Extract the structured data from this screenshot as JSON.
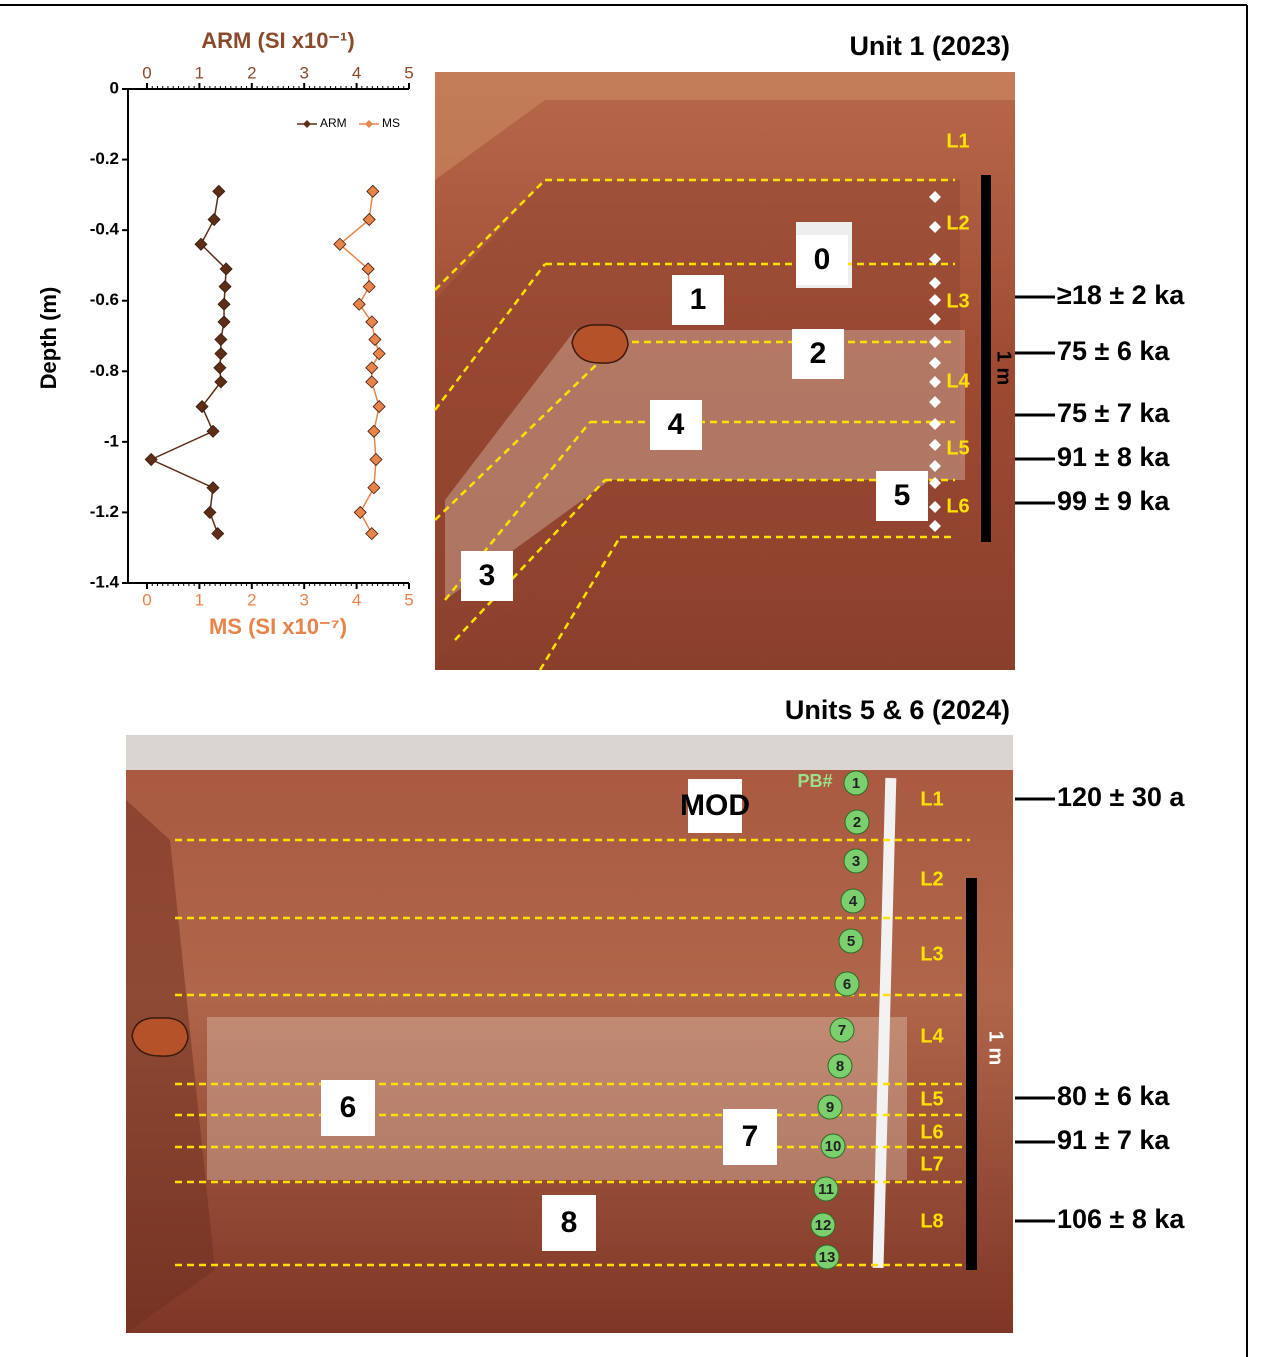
{
  "chart_data": {
    "type": "line",
    "x_label": "ARM (SI x10⁻¹)",
    "x2_label": "MS (SI x10⁻⁷)",
    "y_label": "Depth (m)",
    "xlim": [
      0,
      5
    ],
    "xticks": [
      0,
      1,
      2,
      3,
      4,
      5
    ],
    "x2lim": [
      0,
      5
    ],
    "x2ticks": [
      0,
      1,
      2,
      3,
      4,
      5
    ],
    "ylim": [
      -1.4,
      0
    ],
    "yticks": [
      0,
      -0.2,
      -0.4,
      -0.6,
      -0.8,
      -1,
      -1.2,
      -1.4
    ],
    "series": [
      {
        "name": "ARM",
        "color": "#5c2e18",
        "axis": "x",
        "x": [
          1.37,
          1.28,
          1.03,
          1.51,
          1.49,
          1.47,
          1.47,
          1.41,
          1.41,
          1.39,
          1.41,
          1.05,
          1.26,
          0.08,
          1.26,
          1.2,
          1.35
        ],
        "y": [
          -0.29,
          -0.37,
          -0.44,
          -0.51,
          -0.56,
          -0.61,
          -0.66,
          -0.71,
          -0.75,
          -0.79,
          -0.83,
          -0.9,
          -0.97,
          -1.05,
          -1.13,
          -1.2,
          -1.26
        ]
      },
      {
        "name": "MS",
        "color": "#e8844a",
        "axis": "x2",
        "x": [
          4.31,
          4.24,
          3.68,
          4.22,
          4.24,
          4.05,
          4.29,
          4.35,
          4.43,
          4.29,
          4.29,
          4.43,
          4.33,
          4.37,
          4.33,
          4.07,
          4.29
        ],
        "y": [
          -0.29,
          -0.37,
          -0.44,
          -0.51,
          -0.56,
          -0.61,
          -0.66,
          -0.71,
          -0.75,
          -0.79,
          -0.83,
          -0.9,
          -0.97,
          -1.05,
          -1.13,
          -1.2,
          -1.26
        ]
      }
    ]
  },
  "unit_1": {
    "title": "Unit 1 (2023)",
    "samples": [
      "0",
      "1",
      "2",
      "3",
      "4",
      "5"
    ],
    "layers": [
      "L1",
      "L2",
      "L3",
      "L4",
      "L5",
      "L6"
    ],
    "scale": "1 m",
    "ages": [
      "≥18 ± 2 ka",
      "75 ± 6 ka",
      "75 ± 7 ka",
      "91 ± 8 ka",
      "99 ± 9 ka"
    ]
  },
  "units_5_6": {
    "title": "Units 5 & 6 (2024)",
    "label": "MOD",
    "pb_label": "PB#",
    "pb_numbers": [
      "1",
      "2",
      "3",
      "4",
      "5",
      "6",
      "7",
      "8",
      "9",
      "10",
      "11",
      "12",
      "13"
    ],
    "samples": [
      "6",
      "7",
      "8"
    ],
    "layers": [
      "L1",
      "L2",
      "L3",
      "L4",
      "L5",
      "L6",
      "L7",
      "L8"
    ],
    "scale": "1 m",
    "ages": [
      "120 ± 30 a",
      "80 ± 6 ka",
      "91 ± 7 ka",
      "106 ± 8 ka"
    ]
  }
}
